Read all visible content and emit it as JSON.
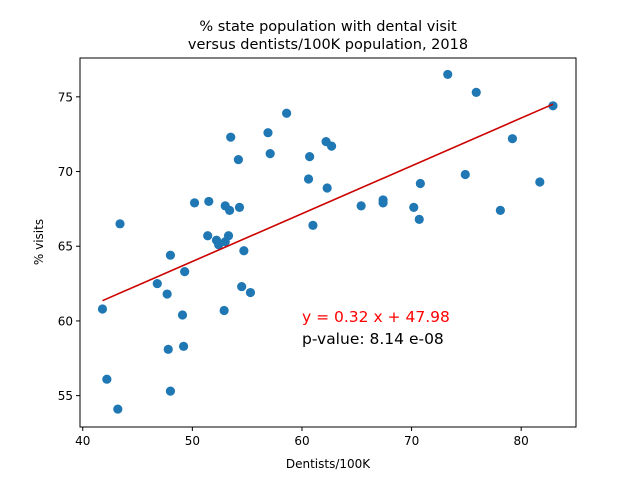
{
  "chart_data": {
    "type": "scatter",
    "title": "% state population with dental visit\nversus dentists/100K population, 2018",
    "xlabel": "Dentists/100K",
    "ylabel": "% visits",
    "xlim": [
      39.75,
      85.0
    ],
    "ylim": [
      52.9,
      77.6
    ],
    "xticks": [
      40,
      50,
      60,
      70,
      80
    ],
    "yticks": [
      55,
      60,
      65,
      70,
      75
    ],
    "grid": false,
    "point_color": "#1f77b4",
    "series": [
      {
        "x": [
          41.8,
          42.2,
          43.2,
          43.4,
          46.8,
          47.7,
          47.8,
          48.0,
          48.0,
          49.1,
          49.2,
          49.3,
          50.2,
          51.4,
          51.5,
          52.2,
          52.4,
          52.9,
          53.0,
          53.0,
          53.3,
          53.4,
          53.5,
          54.2,
          54.3,
          54.5,
          54.7,
          55.3,
          56.9,
          57.1,
          58.6,
          60.6,
          60.7,
          61.0,
          62.2,
          62.3,
          62.7,
          65.4,
          67.4,
          67.4,
          70.2,
          70.7,
          70.8,
          73.3,
          74.9,
          75.9,
          78.1,
          79.2,
          81.7,
          82.9
        ],
        "y": [
          60.8,
          56.1,
          54.1,
          66.5,
          62.5,
          61.8,
          58.1,
          55.3,
          64.4,
          60.4,
          58.3,
          63.3,
          67.9,
          65.7,
          68.0,
          65.4,
          65.1,
          60.7,
          65.3,
          67.7,
          65.7,
          67.4,
          72.3,
          70.8,
          67.6,
          62.3,
          64.7,
          61.9,
          72.6,
          71.2,
          73.9,
          69.5,
          71.0,
          66.4,
          72.0,
          68.9,
          71.7,
          67.7,
          68.1,
          67.9,
          67.6,
          66.8,
          69.2,
          76.5,
          69.8,
          75.3,
          67.4,
          72.2,
          69.3,
          74.4
        ]
      }
    ],
    "regression": {
      "slope": 0.32,
      "intercept": 47.98,
      "x_range": [
        41.8,
        82.9
      ],
      "color": "#cc0000"
    },
    "annotations": {
      "equation": "y = 0.32 x + 47.98",
      "pvalue": "p-value: 8.14 e-08",
      "equation_color": "#ff0000"
    }
  }
}
